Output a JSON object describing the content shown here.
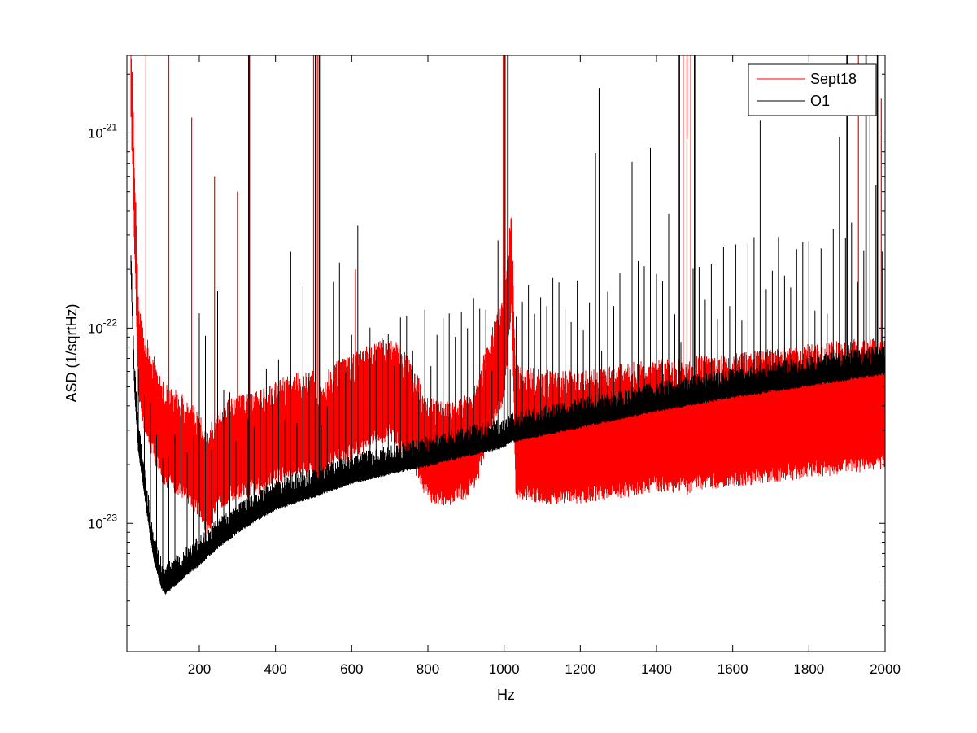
{
  "chart_data": {
    "type": "line",
    "title": "",
    "xlabel": "Hz",
    "ylabel": "ASD (1/sqrtHz)",
    "xlim": [
      10,
      2000
    ],
    "ylim": [
      2.2e-24,
      2.5e-21
    ],
    "yscale": "log",
    "grid": false,
    "legend_position": "top-right",
    "x_ticks": [
      200,
      400,
      600,
      800,
      1000,
      1200,
      1400,
      1600,
      1800,
      2000
    ],
    "x_tick_labels": [
      "200",
      "400",
      "600",
      "800",
      "1000",
      "1200",
      "1400",
      "1600",
      "1800",
      "2000"
    ],
    "y_ticks": [
      1e-23,
      1e-22,
      1e-21
    ],
    "y_tick_labels": [
      {
        "base": "10",
        "exponent": "-23"
      },
      {
        "base": "10",
        "exponent": "-22"
      },
      {
        "base": "10",
        "exponent": "-21"
      }
    ],
    "series": [
      {
        "name": "Sept18",
        "color": "#ff0000",
        "baseline": {
          "x": [
            20,
            40,
            60,
            80,
            100,
            130,
            160,
            200,
            220,
            250,
            300,
            350,
            400,
            450,
            500,
            510,
            540,
            600,
            650,
            700,
            750,
            800,
            850,
            900,
            930,
            960,
            1000,
            1020,
            1030,
            1100,
            1200,
            1300,
            1400,
            1470,
            1480,
            1500,
            1600,
            1700,
            1800,
            1900,
            2000
          ],
          "y": [
            2.5e-21,
            8e-23,
            5e-23,
            4e-23,
            3e-23,
            2.7e-23,
            2.5e-23,
            2e-23,
            1.6e-23,
            2.2e-23,
            2.5e-23,
            2.6e-23,
            3e-23,
            3.2e-23,
            3.3e-23,
            2.5e-23,
            3.5e-23,
            4e-23,
            4.5e-23,
            5e-23,
            4e-23,
            2.4e-23,
            2.3e-23,
            2.5e-23,
            3e-23,
            5e-23,
            8e-23,
            2.4e-22,
            3e-23,
            2.8e-23,
            2.8e-23,
            3e-23,
            3.2e-23,
            3.2e-23,
            3e-23,
            3.3e-23,
            3.4e-23,
            3.6e-23,
            3.8e-23,
            4e-23,
            4.2e-23
          ]
        },
        "lines": [
          {
            "x": 60,
            "peak": 2.5e-21
          },
          {
            "x": 120,
            "peak": 2.5e-21
          },
          {
            "x": 180,
            "peak": 1.2e-21
          },
          {
            "x": 240,
            "peak": 6e-22
          },
          {
            "x": 300,
            "peak": 5e-22
          },
          {
            "x": 332,
            "peak": 2.5e-21
          },
          {
            "x": 500,
            "peak": 2.5e-21
          },
          {
            "x": 510,
            "peak": 2.5e-21
          },
          {
            "x": 610,
            "peak": 2e-22
          },
          {
            "x": 998,
            "peak": 2.5e-21
          },
          {
            "x": 1003,
            "peak": 2.5e-21
          },
          {
            "x": 1009,
            "peak": 2.5e-21
          },
          {
            "x": 1470,
            "peak": 2.5e-21
          },
          {
            "x": 1480,
            "peak": 2.5e-21
          },
          {
            "x": 1490,
            "peak": 2.5e-21
          },
          {
            "x": 1930,
            "peak": 2.5e-21
          },
          {
            "x": 1950,
            "peak": 2.5e-21
          },
          {
            "x": 1990,
            "peak": 1.5e-21
          }
        ]
      },
      {
        "name": "O1",
        "color": "#000000",
        "baseline": {
          "x": [
            20,
            30,
            40,
            60,
            80,
            100,
            110,
            130,
            160,
            200,
            250,
            300,
            350,
            400,
            450,
            500,
            505,
            520,
            600,
            700,
            800,
            900,
            1000,
            1020,
            1030,
            1200,
            1400,
            1600,
            1800,
            2000
          ],
          "y": [
            2.2e-22,
            5e-23,
            2.5e-23,
            1.3e-23,
            7e-24,
            5e-24,
            4.6e-24,
            5e-24,
            5.6e-24,
            6.5e-24,
            8e-24,
            9.5e-24,
            1.1e-23,
            1.25e-23,
            1.35e-23,
            1.45e-23,
            1.45e-23,
            1.5e-23,
            1.7e-23,
            1.9e-23,
            2.1e-23,
            2.35e-23,
            2.6e-23,
            2.8e-23,
            2.8e-23,
            3.3e-23,
            4e-23,
            4.7e-23,
            5.4e-23,
            6.2e-23
          ]
        },
        "line_spacing_hz": 16,
        "line_peak": 1e-22,
        "lines": [
          {
            "x": 330,
            "peak": 2.5e-21
          },
          {
            "x": 505,
            "peak": 2.5e-21
          },
          {
            "x": 515,
            "peak": 2.5e-21
          },
          {
            "x": 1000,
            "peak": 2.5e-21
          },
          {
            "x": 1010,
            "peak": 2.5e-21
          },
          {
            "x": 1250,
            "peak": 1.7e-21
          },
          {
            "x": 1460,
            "peak": 2.5e-21
          },
          {
            "x": 1500,
            "peak": 2.5e-21
          },
          {
            "x": 1900,
            "peak": 2.5e-21
          },
          {
            "x": 1950,
            "peak": 2.5e-21
          },
          {
            "x": 1980,
            "peak": 2.5e-21
          }
        ]
      }
    ]
  }
}
